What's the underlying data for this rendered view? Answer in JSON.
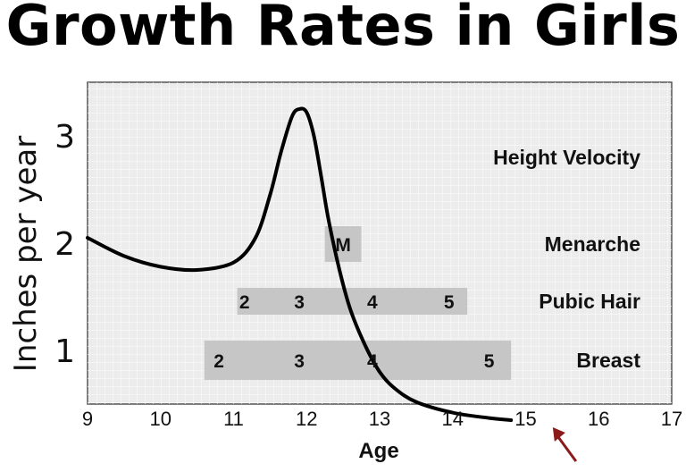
{
  "chart_data": {
    "type": "line",
    "title": "Growth Rates in Girls",
    "xlabel": "Age",
    "ylabel": "Inches per year",
    "xlim": [
      9,
      17
    ],
    "ylim": [
      0.5,
      3.5
    ],
    "x_ticks": [
      "9",
      "10",
      "11",
      "12",
      "13",
      "14",
      "15",
      "16",
      "17"
    ],
    "y_ticks": [
      "1",
      "2",
      "3"
    ],
    "grid": true,
    "series": [
      {
        "name": "Height Velocity",
        "x": [
          9.0,
          9.5,
          10.0,
          10.5,
          11.0,
          11.3,
          11.5,
          11.65,
          11.8,
          11.9,
          12.0,
          12.1,
          12.2,
          12.3,
          12.45,
          12.6,
          12.8,
          13.0,
          13.2,
          13.5,
          14.0,
          14.5,
          14.8
        ],
        "y": [
          2.05,
          1.88,
          1.78,
          1.75,
          1.82,
          2.05,
          2.45,
          2.85,
          3.18,
          3.25,
          3.22,
          3.0,
          2.62,
          2.22,
          1.75,
          1.38,
          1.05,
          0.8,
          0.65,
          0.52,
          0.42,
          0.37,
          0.35
        ]
      }
    ],
    "rows": [
      {
        "label": "Height Velocity"
      },
      {
        "label": "Menarche",
        "start": 12.25,
        "end": 12.75,
        "stages": [
          {
            "text": "M",
            "x": 12.5
          }
        ]
      },
      {
        "label": "Pubic Hair",
        "start": 11.05,
        "end": 14.2,
        "stages": [
          {
            "text": "2",
            "x": 11.15
          },
          {
            "text": "3",
            "x": 11.9
          },
          {
            "text": "4",
            "x": 12.9
          },
          {
            "text": "5",
            "x": 13.95
          }
        ]
      },
      {
        "label": "Breast",
        "start": 10.6,
        "end": 14.8,
        "stages": [
          {
            "text": "2",
            "x": 10.8
          },
          {
            "text": "3",
            "x": 11.9
          },
          {
            "text": "4",
            "x": 12.9
          },
          {
            "text": "5",
            "x": 14.5
          }
        ]
      }
    ],
    "annotation": {
      "type": "arrow",
      "points_to_x": 15.2,
      "color": "#8b1a1a"
    }
  },
  "colors": {
    "plot_bg": "#ececec",
    "grid": "#f8f8f8",
    "bar": "#c6c6c6",
    "line": "#000000",
    "arrow": "#8b1a1a"
  }
}
